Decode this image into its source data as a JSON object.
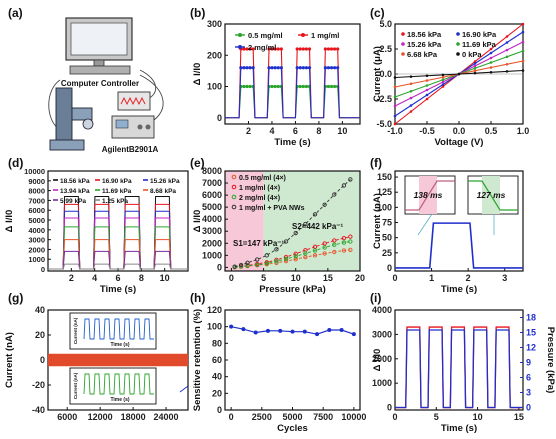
{
  "panel_labels": [
    "(a)",
    "(b)",
    "(c)",
    "(d)",
    "(e)",
    "(f)",
    "(g)",
    "(h)",
    "(i)"
  ],
  "panel_a": {
    "computer_label": "Computer Controller",
    "instrument_label": "AgilentB2901A"
  },
  "colors": {
    "red": "#e8141c",
    "green": "#2aa52a",
    "blue": "#1f2fcc",
    "black": "#111111",
    "orange": "#e8542a",
    "pink_band": "#f6c8d8",
    "green_band": "#cfe8d0"
  },
  "chart_data": [
    {
      "panel": "(b)",
      "type": "line",
      "xlabel": "Time (s)",
      "ylabel": "Δ I/I0",
      "xlim": [
        0,
        11.5
      ],
      "ylim": [
        -20,
        300
      ],
      "xticks": [
        "2",
        "4",
        "6",
        "8",
        "10"
      ],
      "yticks": [
        "0",
        "100",
        "200",
        "300"
      ],
      "legend": [
        "0.5 mg/ml",
        "1 mg/ml",
        "2 mg/ml"
      ],
      "periods": [
        [
          1.2,
          2.4
        ],
        [
          3.6,
          4.8
        ],
        [
          6.0,
          7.2
        ],
        [
          8.4,
          9.6
        ]
      ],
      "series": [
        {
          "name": "0.5 mg/ml",
          "color": "#2aa52a",
          "on_value": 100
        },
        {
          "name": "1 mg/ml",
          "color": "#e8141c",
          "on_value": 220
        },
        {
          "name": "2 mg/ml",
          "color": "#1f2fcc",
          "on_value": 160
        }
      ]
    },
    {
      "panel": "(c)",
      "type": "line",
      "xlabel": "Voltage (V)",
      "ylabel": "Current (μA)",
      "xlim": [
        -1.0,
        1.0
      ],
      "ylim": [
        -5.0,
        5.0
      ],
      "xticks": [
        "-1.0",
        "-0.5",
        "0.0",
        "0.5",
        "1.0"
      ],
      "yticks": [
        "-5.0",
        "-2.5",
        "0.0",
        "2.5",
        "5.0"
      ],
      "yticks_minor": [
        "-4.0",
        "-3.0",
        "-2.0",
        "-1.0",
        "1.0",
        "2.0",
        "3.0",
        "4.0"
      ],
      "legend": [
        "18.56 kPa",
        "16.90 kPa",
        "15.26 kPa",
        "11.69 kPa",
        "6.68 kPa",
        "0 kPa"
      ],
      "series": [
        {
          "name": "18.56 kPa",
          "color": "#e8141c",
          "slope": 5.0
        },
        {
          "name": "16.90 kPa",
          "color": "#1f2fcc",
          "slope": 4.2
        },
        {
          "name": "15.26 kPa",
          "color": "#c026c0",
          "slope": 3.2
        },
        {
          "name": "11.69 kPa",
          "color": "#2aa52a",
          "slope": 2.3
        },
        {
          "name": "6.68 kPa",
          "color": "#e8542a",
          "slope": 1.3
        },
        {
          "name": "0 kPa",
          "color": "#111111",
          "slope": 0.35
        }
      ]
    },
    {
      "panel": "(d)",
      "type": "line",
      "xlabel": "Time (s)",
      "ylabel": "Δ I/I0",
      "xlim": [
        0,
        12
      ],
      "ylim": [
        -200,
        10000
      ],
      "xticks": [
        "2",
        "4",
        "6",
        "8",
        "10"
      ],
      "yticks": [
        "0",
        "1000",
        "2000",
        "3000",
        "4000",
        "5000",
        "6000",
        "7000",
        "8000",
        "9000",
        "10000"
      ],
      "legend": [
        "18.56 kPa",
        "16.90 kPa",
        "15.26 kPa",
        "13.94 kPa",
        "11.69 kPa",
        "8.68 kPa",
        "5.99 kPa",
        "1.25 kPa"
      ],
      "periods": [
        [
          1.3,
          2.6
        ],
        [
          3.9,
          5.2
        ],
        [
          6.5,
          7.8
        ],
        [
          9.1,
          10.4
        ]
      ],
      "series": [
        {
          "name": "18.56 kPa",
          "color": "#111111",
          "on_value": 7400
        },
        {
          "name": "16.90 kPa",
          "color": "#e8141c",
          "on_value": 6600
        },
        {
          "name": "15.26 kPa",
          "color": "#1f2fcc",
          "on_value": 5900
        },
        {
          "name": "13.94 kPa",
          "color": "#c026c0",
          "on_value": 5200
        },
        {
          "name": "11.69 kPa",
          "color": "#2aa52a",
          "on_value": 4300
        },
        {
          "name": "8.68 kPa",
          "color": "#e8542a",
          "on_value": 3000
        },
        {
          "name": "5.99 kPa",
          "color": "#7a2aa0",
          "on_value": 1800
        },
        {
          "name": "1.25 kPa",
          "color": "#888888",
          "on_value": 500
        }
      ]
    },
    {
      "panel": "(e)",
      "type": "scatter",
      "xlabel": "Pressure (kPa)",
      "ylabel": "Δ I/I0",
      "xlim": [
        -1,
        20
      ],
      "ylim": [
        -300,
        8000
      ],
      "xticks": [
        "0",
        "5",
        "10",
        "15",
        "20"
      ],
      "yticks": [
        "0",
        "1000",
        "2000",
        "3000",
        "4000",
        "5000",
        "6000",
        "7000",
        "8000"
      ],
      "legend": [
        "0.5 mg/ml (4×)",
        "1 mg/ml (4×)",
        "2 mg/ml (4×)",
        "1 mg/ml + PVA NWs"
      ],
      "annotations": [
        "S1=147 kPa⁻¹",
        "S2=442 kPa⁻¹"
      ],
      "regions": [
        {
          "from": -1,
          "to": 5,
          "color": "pink"
        },
        {
          "from": 5,
          "to": 20,
          "color": "green"
        }
      ],
      "x": [
        0.5,
        1.5,
        2.5,
        4,
        5.5,
        7,
        8.5,
        10,
        11.5,
        13,
        14.5,
        16,
        17.5,
        18.5
      ],
      "series": [
        {
          "name": "0.5 mg/ml (4×)",
          "color": "#e8542a",
          "values": [
            20,
            60,
            110,
            180,
            260,
            380,
            520,
            680,
            850,
            1000,
            1150,
            1280,
            1400,
            1450
          ]
        },
        {
          "name": "1 mg/ml (4×)",
          "color": "#e8141c",
          "values": [
            30,
            90,
            170,
            280,
            420,
            620,
            860,
            1130,
            1420,
            1710,
            1980,
            2230,
            2430,
            2550
          ]
        },
        {
          "name": "2 mg/ml (4×)",
          "color": "#2aa52a",
          "values": [
            20,
            70,
            130,
            210,
            330,
            500,
            700,
            920,
            1150,
            1400,
            1650,
            1880,
            2060,
            2150
          ]
        },
        {
          "name": "1 mg/ml + PVA NWs",
          "color": "#333333",
          "values": [
            60,
            200,
            380,
            650,
            1000,
            1500,
            2150,
            2850,
            3600,
            4400,
            5200,
            6050,
            6800,
            7300
          ]
        }
      ]
    },
    {
      "panel": "(f)",
      "type": "line",
      "xlabel": "Time (s)",
      "ylabel": "Current (nA)",
      "xlim": [
        0,
        3.5
      ],
      "ylim": [
        -5,
        160
      ],
      "xticks": [
        "0",
        "1",
        "2",
        "3"
      ],
      "yticks": [
        "0",
        "25",
        "50",
        "75",
        "100",
        "125",
        "150"
      ],
      "annotations": [
        "138 ms",
        "127 ms"
      ],
      "points": [
        [
          0,
          0
        ],
        [
          0.95,
          0
        ],
        [
          1.05,
          74
        ],
        [
          2.05,
          74
        ],
        [
          2.15,
          0
        ],
        [
          3.5,
          0
        ]
      ]
    },
    {
      "panel": "(g)",
      "type": "line",
      "xlabel": "",
      "ylabel": "Current (nA)",
      "xlim": [
        2500,
        28000
      ],
      "ylim": [
        -40,
        40
      ],
      "xticks": [
        "6000",
        "12000",
        "18000",
        "24000"
      ],
      "yticks": [
        "-40",
        "-20",
        "0",
        "20",
        "40"
      ],
      "band": [
        -5,
        5
      ],
      "inset_labels": {
        "ylabel": "Current (nA)",
        "xlabel": "Time (s)"
      }
    },
    {
      "panel": "(h)",
      "type": "line",
      "xlabel": "Cycles",
      "ylabel": "Sensitive retention (%)",
      "xlim": [
        -500,
        10500
      ],
      "ylim": [
        0,
        120
      ],
      "xticks": [
        "0",
        "2500",
        "5000",
        "7500",
        "10000"
      ],
      "yticks": [
        "0",
        "20",
        "40",
        "60",
        "80",
        "100",
        "120"
      ],
      "x": [
        0,
        1000,
        2000,
        3000,
        4000,
        5000,
        6000,
        7000,
        8000,
        9000,
        10000
      ],
      "values": [
        100,
        97,
        93,
        95,
        95,
        94,
        94,
        91,
        96,
        96,
        91
      ]
    },
    {
      "panel": "(i)",
      "type": "line",
      "xlabel": "Time (s)",
      "ylabel": "Δ I/I0",
      "ylabel_right": "Pressure (kPa)",
      "xlim": [
        0,
        15.5
      ],
      "ylim": [
        -100,
        4000
      ],
      "ylim_right": [
        -0.5,
        19.5
      ],
      "xticks": [
        "0",
        "5",
        "10",
        "15"
      ],
      "yticks": [
        "0",
        "1000",
        "2000",
        "3000",
        "4000"
      ],
      "yticks_right": [
        "0",
        "3",
        "6",
        "9",
        "12",
        "15",
        "18"
      ],
      "periods": [
        [
          1.3,
          3.0
        ],
        [
          4.0,
          5.7
        ],
        [
          6.7,
          8.4
        ],
        [
          9.4,
          11.1
        ],
        [
          12.1,
          13.8
        ]
      ],
      "series": [
        {
          "name": "ΔI/I0",
          "color": "#e8141c",
          "on_value": 3300
        },
        {
          "name": "Pressure",
          "color": "#1f2fcc",
          "on_value": 15.5
        }
      ]
    }
  ]
}
